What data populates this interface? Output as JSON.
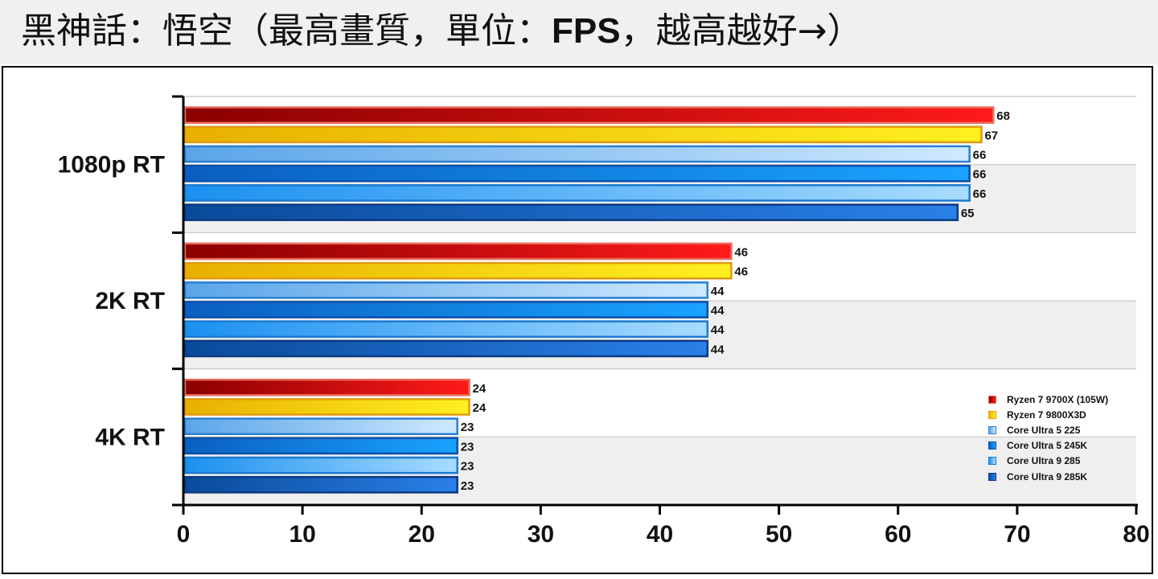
{
  "title": {
    "part1": "黑神話：悟空（最高畫質，單位：",
    "part2": "FPS",
    "part3": "，越高越好→）"
  },
  "chart_data": {
    "type": "bar",
    "orientation": "horizontal",
    "categories": [
      "1080p RT",
      "2K RT",
      "4K RT"
    ],
    "series": [
      {
        "name": "Ryzen 7 9700X (105W)",
        "values": [
          68,
          46,
          24
        ]
      },
      {
        "name": "Ryzen 7 9800X3D",
        "values": [
          67,
          46,
          24
        ]
      },
      {
        "name": "Core Ultra 5 225",
        "values": [
          66,
          44,
          23
        ]
      },
      {
        "name": "Core Ultra 5 245K",
        "values": [
          66,
          44,
          23
        ]
      },
      {
        "name": "Core Ultra 9 285",
        "values": [
          66,
          44,
          23
        ]
      },
      {
        "name": "Core Ultra 9 285K",
        "values": [
          65,
          44,
          23
        ]
      }
    ],
    "xlim": [
      0,
      80
    ],
    "xticks": [
      0,
      10,
      20,
      30,
      40,
      50,
      60,
      70,
      80
    ],
    "legend_position": "bottom-right",
    "colors": [
      {
        "dark": "#8a0000",
        "light": "#ff1a1a",
        "edge": "#e86a5a"
      },
      {
        "dark": "#e8b000",
        "light": "#fff020",
        "edge": "#e09a10"
      },
      {
        "dark": "#5aa5e8",
        "light": "#cfe9ff",
        "edge": "#2a7fd0"
      },
      {
        "dark": "#0a5fc0",
        "light": "#19a3ff",
        "edge": "#0a4fa8"
      },
      {
        "dark": "#1a90f0",
        "light": "#a8dcff",
        "edge": "#1a7ad0"
      },
      {
        "dark": "#0a4a9a",
        "light": "#2a80e8",
        "edge": "#0a3a80"
      }
    ]
  }
}
